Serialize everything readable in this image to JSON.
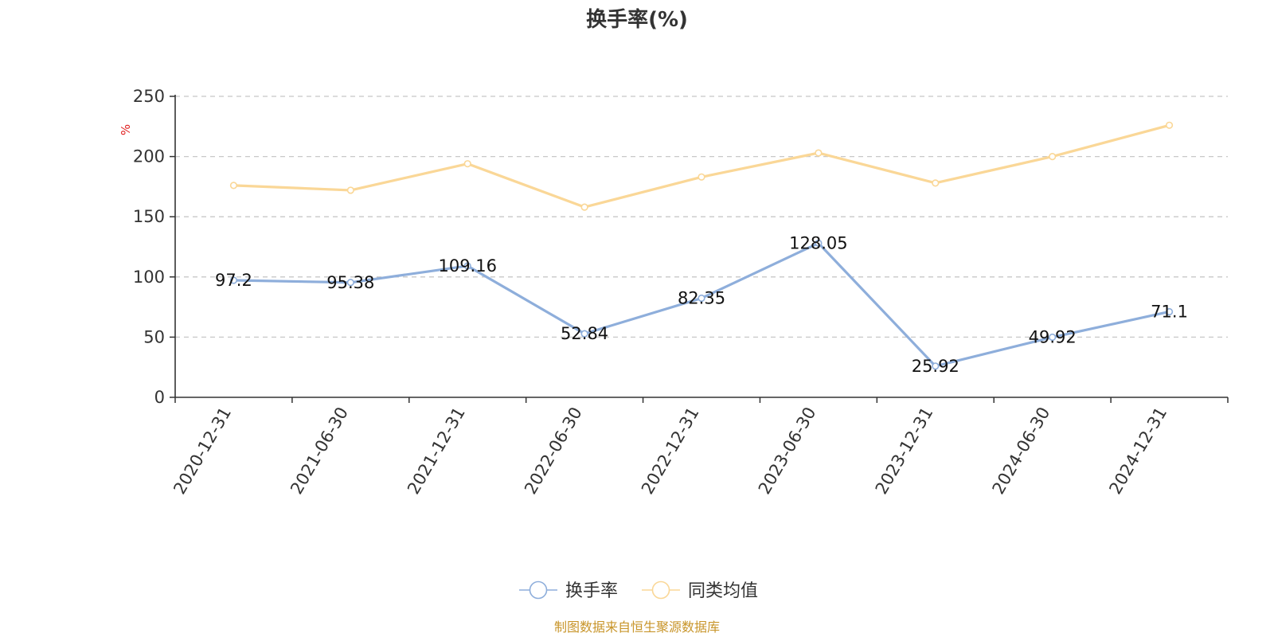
{
  "chart_data": {
    "type": "line",
    "title": "换手率(%)",
    "ylabel": "%",
    "ylim": [
      0,
      250
    ],
    "yticks": [
      0,
      50,
      100,
      150,
      200,
      250
    ],
    "grid": true,
    "legend_position": "bottom-center",
    "categories": [
      "2020-12-31",
      "2021-06-30",
      "2021-12-31",
      "2022-06-30",
      "2022-12-31",
      "2023-06-30",
      "2023-12-31",
      "2024-06-30",
      "2024-12-31"
    ],
    "series": [
      {
        "name": "换手率",
        "color": "#8eaedb",
        "values": [
          97.2,
          95.38,
          109.16,
          52.84,
          82.35,
          128.05,
          25.92,
          49.92,
          71.1
        ],
        "labels": [
          "97.2",
          "95.38",
          "109.16",
          "52.84",
          "82.35",
          "128.05",
          "25.92",
          "49.92",
          "71.1"
        ]
      },
      {
        "name": "同类均值",
        "color": "#fad797",
        "values": [
          176,
          172,
          194,
          158,
          183,
          203,
          178,
          200,
          226
        ]
      }
    ],
    "source": "制图数据来自恒生聚源数据库"
  }
}
